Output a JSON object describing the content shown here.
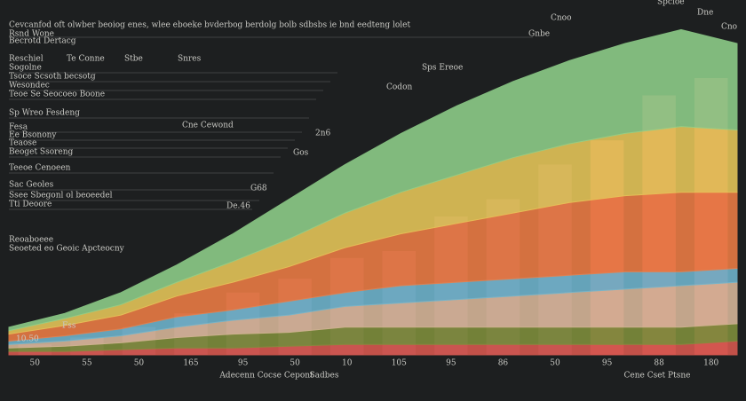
{
  "chart_data": {
    "type": "area",
    "title": "Cevcanfod oft olwber beoiog enes, wlee eboeke bvderbog berdolg bolb sdbsbs ie bnd eedteng lolet",
    "subtitle": "Rsnd Wone",
    "notes": [
      "Becrotd Dertacg",
      "Reschiel",
      "Te Conne",
      "Stbe",
      "Snres",
      "Sogolne",
      "Tsoce Scsoth becsotg",
      "Wesondec",
      "Teoe Se Seocoeo Boone",
      "Sp Wreo Fesdeng",
      "Fesa",
      "Ee Bsonony",
      "Teaose",
      "Beoget Ssoreng",
      "Teeoe Cenoeen",
      "Sac Geoles",
      "Ssee Sbegonl ol beoeedel",
      "Tti Deoore",
      "Reoaboeee",
      "Seoeted eo Geoic Apcteocny"
    ],
    "annotations": [
      "Cne Cewond",
      "Sps Ereoe",
      "Codon",
      "Gnbe",
      "Cnoo",
      "Spcioe",
      "Dne",
      "Cno",
      "2n6",
      "Gos",
      "G68",
      "De.46",
      "Fss",
      "10.50"
    ],
    "x_label_left": "Adecenn Cocse Cepont",
    "x_label_mid": "Sadbes",
    "x_label_right": "Cene Cset Ptsne",
    "categories": [
      "50",
      "55",
      "50",
      "165",
      "95",
      "50",
      "10",
      "105",
      "95",
      "86",
      "50",
      "95",
      "88",
      "180"
    ],
    "ylim": [
      0,
      100
    ],
    "bars": {
      "color": "#6e4a66",
      "values": [
        3,
        5,
        8,
        12,
        18,
        22,
        28,
        30,
        40,
        45,
        55,
        62,
        75,
        80
      ]
    },
    "series": [
      {
        "color": "#d9584f",
        "values": [
          1,
          1,
          1.5,
          2,
          2,
          2.5,
          3,
          3,
          3,
          3,
          3,
          3,
          3,
          4
        ]
      },
      {
        "color": "#7f8f3c",
        "values": [
          1,
          1.5,
          2,
          3,
          4,
          4,
          5,
          5,
          5,
          5,
          5,
          5,
          5,
          5
        ]
      },
      {
        "color": "#d9b89a",
        "values": [
          1,
          1.5,
          2,
          3,
          4,
          5,
          6,
          7,
          8,
          9,
          10,
          11,
          12,
          12
        ]
      },
      {
        "color": "#6fb6cf",
        "values": [
          1,
          1.5,
          2,
          3,
          3,
          4,
          4,
          5,
          5,
          5,
          5,
          5,
          4,
          4
        ]
      },
      {
        "color": "#ee7d45",
        "values": [
          2,
          3,
          4,
          6,
          8,
          10,
          13,
          15,
          17,
          19,
          21,
          22,
          23,
          22
        ]
      },
      {
        "color": "#e8c85a",
        "values": [
          1,
          2,
          3,
          4,
          6,
          8,
          10,
          12,
          14,
          16,
          17,
          18,
          19,
          18
        ]
      },
      {
        "color": "#8fd08a",
        "values": [
          1,
          1.5,
          3.5,
          5,
          8,
          11.5,
          14,
          17,
          20,
          22,
          24,
          26,
          28,
          25
        ]
      }
    ]
  }
}
